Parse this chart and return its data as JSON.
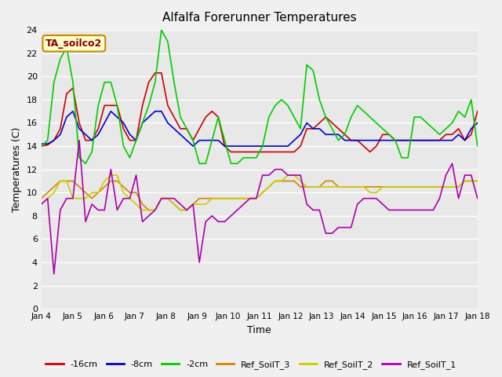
{
  "title": "Alfalfa Forerunner Temperatures",
  "xlabel": "Time",
  "ylabel": "Temperatures (C)",
  "annotation": "TA_soilco2",
  "ylim": [
    0,
    24
  ],
  "yticks": [
    0,
    2,
    4,
    6,
    8,
    10,
    12,
    14,
    16,
    18,
    20,
    22,
    24
  ],
  "xtick_labels": [
    "Jan 4",
    "Jan 5",
    "Jan 6",
    "Jan 7",
    "Jan 8",
    "Jan 9",
    "Jan 10",
    "Jan 11",
    "Jan 12",
    "Jan 13",
    "Jan 14",
    "Jan 15",
    "Jan 16",
    "Jan 17",
    "Jan 18"
  ],
  "fig_bg_color": "#f0f0f0",
  "plot_bg_color": "#e8e8e8",
  "grid_color": "#ffffff",
  "series": {
    "-16cm": {
      "color": "#cc0000",
      "y": [
        14.0,
        14.1,
        14.5,
        15.5,
        18.5,
        19.0,
        16.0,
        14.5,
        14.5,
        15.5,
        17.5,
        17.5,
        17.5,
        15.5,
        14.5,
        14.5,
        17.5,
        19.5,
        20.3,
        20.3,
        17.5,
        16.5,
        15.5,
        15.5,
        14.5,
        15.5,
        16.5,
        17.0,
        16.5,
        14.0,
        13.5,
        13.5,
        13.5,
        13.5,
        13.5,
        13.5,
        13.5,
        13.5,
        13.5,
        13.5,
        13.5,
        14.0,
        15.5,
        15.5,
        16.0,
        16.5,
        16.0,
        15.5,
        15.0,
        14.5,
        14.5,
        14.0,
        13.5,
        14.0,
        15.0,
        15.0,
        14.5,
        14.5,
        14.5,
        14.5,
        14.5,
        14.5,
        14.5,
        14.5,
        15.0,
        15.0,
        15.5,
        14.5,
        15.0,
        17.0
      ]
    },
    "-8cm": {
      "color": "#0000cc",
      "y": [
        14.2,
        14.2,
        14.5,
        15.0,
        16.5,
        17.0,
        15.5,
        15.0,
        14.5,
        15.0,
        16.0,
        17.0,
        16.5,
        16.0,
        15.0,
        14.5,
        16.0,
        16.5,
        17.0,
        17.0,
        16.0,
        15.5,
        15.0,
        14.5,
        14.0,
        14.5,
        14.5,
        14.5,
        14.5,
        14.0,
        14.0,
        14.0,
        14.0,
        14.0,
        14.0,
        14.0,
        14.0,
        14.0,
        14.0,
        14.0,
        14.5,
        15.0,
        16.0,
        15.5,
        15.5,
        15.0,
        15.0,
        15.0,
        14.5,
        14.5,
        14.5,
        14.5,
        14.5,
        14.5,
        14.5,
        14.5,
        14.5,
        14.5,
        14.5,
        14.5,
        14.5,
        14.5,
        14.5,
        14.5,
        14.5,
        14.5,
        15.0,
        14.5,
        15.5,
        16.0
      ]
    },
    "-2cm": {
      "color": "#00cc00",
      "y": [
        14.0,
        14.5,
        19.5,
        21.5,
        22.5,
        19.5,
        13.0,
        12.5,
        13.5,
        17.5,
        19.5,
        19.5,
        17.5,
        14.0,
        13.0,
        14.5,
        16.0,
        17.5,
        19.5,
        24.0,
        23.0,
        19.5,
        16.5,
        15.5,
        14.5,
        12.5,
        12.5,
        14.5,
        16.5,
        14.5,
        12.5,
        12.5,
        13.0,
        13.0,
        13.0,
        14.0,
        16.5,
        17.5,
        18.0,
        17.5,
        16.5,
        15.5,
        21.0,
        20.5,
        18.0,
        16.5,
        15.5,
        14.5,
        15.0,
        16.5,
        17.5,
        17.0,
        16.5,
        16.0,
        15.5,
        15.0,
        14.5,
        13.0,
        13.0,
        16.5,
        16.5,
        16.0,
        15.5,
        15.0,
        15.5,
        16.0,
        17.0,
        16.5,
        18.0,
        14.0
      ]
    },
    "Ref_SoilT_3": {
      "color": "#cc8800",
      "y": [
        9.5,
        10.0,
        10.5,
        11.0,
        11.0,
        11.0,
        10.5,
        10.0,
        9.5,
        10.0,
        10.5,
        11.0,
        11.0,
        10.5,
        10.0,
        10.0,
        9.0,
        8.5,
        8.5,
        9.5,
        9.5,
        9.0,
        8.5,
        8.5,
        9.0,
        9.5,
        9.5,
        9.5,
        9.5,
        9.5,
        9.5,
        9.5,
        9.5,
        9.5,
        9.5,
        10.0,
        10.5,
        11.0,
        11.0,
        11.0,
        11.0,
        10.5,
        10.5,
        10.5,
        10.5,
        11.0,
        11.0,
        10.5,
        10.5,
        10.5,
        10.5,
        10.5,
        10.5,
        10.5,
        10.5,
        10.5,
        10.5,
        10.5,
        10.5,
        10.5,
        10.5,
        10.5,
        10.5,
        10.5,
        10.5,
        10.5,
        10.5,
        11.0,
        11.0,
        11.0
      ]
    },
    "Ref_SoilT_2": {
      "color": "#cccc00",
      "y": [
        9.0,
        9.5,
        10.0,
        11.0,
        11.0,
        9.5,
        9.5,
        9.5,
        10.0,
        10.0,
        11.0,
        11.5,
        11.5,
        10.0,
        9.5,
        9.0,
        8.5,
        8.5,
        8.5,
        9.5,
        9.5,
        9.0,
        8.5,
        8.5,
        9.0,
        9.0,
        9.0,
        9.5,
        9.5,
        9.5,
        9.5,
        9.5,
        9.5,
        9.5,
        9.5,
        10.0,
        10.5,
        11.0,
        11.0,
        11.5,
        11.5,
        11.0,
        10.5,
        10.5,
        10.5,
        10.5,
        10.5,
        10.5,
        10.5,
        10.5,
        10.5,
        10.5,
        10.0,
        10.0,
        10.5,
        10.5,
        10.5,
        10.5,
        10.5,
        10.5,
        10.5,
        10.5,
        10.5,
        10.5,
        10.5,
        10.5,
        10.5,
        11.0,
        11.0,
        11.0
      ]
    },
    "Ref_SoilT_1": {
      "color": "#aa00aa",
      "y": [
        9.0,
        9.5,
        3.0,
        8.5,
        9.5,
        9.5,
        14.5,
        7.5,
        9.0,
        8.5,
        8.5,
        12.0,
        8.5,
        9.5,
        9.5,
        11.5,
        7.5,
        8.0,
        8.5,
        9.5,
        9.5,
        9.5,
        9.0,
        8.5,
        9.0,
        4.0,
        7.5,
        8.0,
        7.5,
        7.5,
        8.0,
        8.5,
        9.0,
        9.5,
        9.5,
        11.5,
        11.5,
        12.0,
        12.0,
        11.5,
        11.5,
        11.5,
        9.0,
        8.5,
        8.5,
        6.5,
        6.5,
        7.0,
        7.0,
        7.0,
        9.0,
        9.5,
        9.5,
        9.5,
        9.0,
        8.5,
        8.5,
        8.5,
        8.5,
        8.5,
        8.5,
        8.5,
        8.5,
        9.5,
        11.5,
        12.5,
        9.5,
        11.5,
        11.5,
        9.5
      ]
    }
  },
  "legend_entries": [
    {
      "label": "-16cm",
      "color": "#cc0000"
    },
    {
      "label": "-8cm",
      "color": "#0000cc"
    },
    {
      "label": "-2cm",
      "color": "#00cc00"
    },
    {
      "label": "Ref_SoilT_3",
      "color": "#cc8800"
    },
    {
      "label": "Ref_SoilT_2",
      "color": "#cccc00"
    },
    {
      "label": "Ref_SoilT_1",
      "color": "#aa00aa"
    }
  ]
}
